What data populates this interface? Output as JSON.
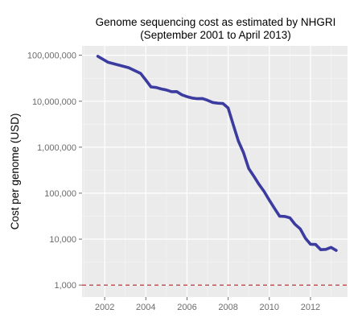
{
  "chart_data": {
    "type": "line",
    "title": "Genome sequencing cost as estimated by NHGRI",
    "subtitle": "(September 2001 to April 2013)",
    "xlabel": "",
    "ylabel": "Cost per genome (USD)",
    "xlim": [
      2000.9,
      2013.8
    ],
    "ylim": [
      550,
      160000000
    ],
    "y_scale": "log",
    "grid": true,
    "x_ticks": [
      2002,
      2004,
      2006,
      2008,
      2010,
      2012
    ],
    "x_tick_labels": [
      "2002",
      "2004",
      "2006",
      "2008",
      "2010",
      "2012"
    ],
    "y_ticks": [
      1000,
      10000,
      100000,
      1000000,
      10000000,
      100000000
    ],
    "y_tick_labels": [
      "1,000",
      "10,000",
      "100,000",
      "1,000,000",
      "10,000,000",
      "100,000,000"
    ],
    "line_color": "#3b3ba0",
    "reference_line": {
      "value": 1000,
      "color": "#b22222",
      "style": "dashed"
    },
    "series": [
      {
        "x": [
          "2001-09",
          "2002-03",
          "2002-09",
          "2003-03",
          "2003-10",
          "2004-01",
          "2004-04",
          "2004-07",
          "2004-10",
          "2005-01",
          "2005-04",
          "2005-07",
          "2005-10",
          "2006-01",
          "2006-04",
          "2006-07",
          "2006-10",
          "2007-01",
          "2007-04",
          "2007-07",
          "2007-10",
          "2008-01",
          "2008-04",
          "2008-07",
          "2008-10",
          "2009-01",
          "2009-04",
          "2009-07",
          "2009-10",
          "2010-01",
          "2010-04",
          "2010-07",
          "2010-10",
          "2011-01",
          "2011-04",
          "2011-07",
          "2011-10",
          "2012-01",
          "2012-04",
          "2012-07",
          "2012-10",
          "2013-01",
          "2013-04"
        ],
        "values": [
          95263072,
          70175437,
          61448422,
          53751684,
          40157554,
          28780376,
          20442576,
          19934346,
          18519312,
          17534970,
          16159699,
          16180224,
          13801124,
          12585658,
          11732534,
          11355763,
          11455093,
          10474556,
          9408739,
          9047003,
          8927342,
          7147571,
          3063820,
          1352982,
          752080,
          342502,
          232735,
          154714,
          108065,
          70333,
          46774,
          31512,
          31125,
          29092,
          20963,
          16712,
          10497,
          7743,
          7666,
          5901,
          5985,
          6618,
          5671
        ]
      }
    ]
  }
}
